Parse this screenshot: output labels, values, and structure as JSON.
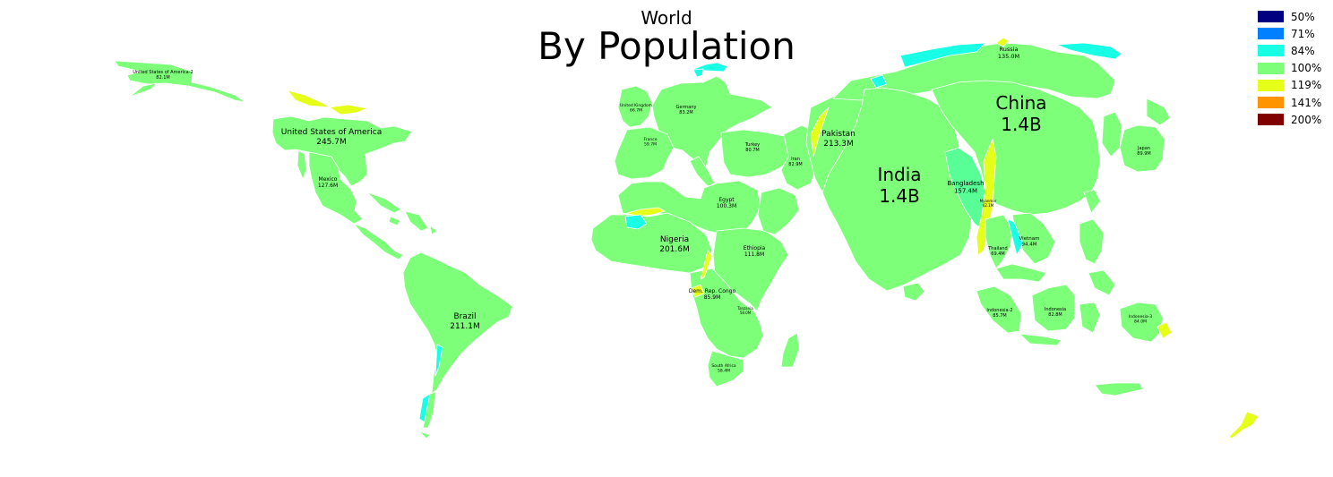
{
  "title": {
    "super": "World",
    "main": "By Population"
  },
  "legend": [
    {
      "label": "50%",
      "color": "#000080"
    },
    {
      "label": "71%",
      "color": "#0080ff"
    },
    {
      "label": "84%",
      "color": "#19ffe6"
    },
    {
      "label": "100%",
      "color": "#7dff7a"
    },
    {
      "label": "119%",
      "color": "#e6ff19"
    },
    {
      "label": "141%",
      "color": "#ff9400"
    },
    {
      "label": "200%",
      "color": "#800000"
    }
  ],
  "countries": [
    {
      "name": "United States of America-2",
      "value": "82.1M"
    },
    {
      "name": "United States of America",
      "value": "245.7M"
    },
    {
      "name": "Mexico",
      "value": "127.6M"
    },
    {
      "name": "Brazil",
      "value": "211.1M"
    },
    {
      "name": "United Kingdom",
      "value": "66.7M"
    },
    {
      "name": "Germany",
      "value": "83.2M"
    },
    {
      "name": "France",
      "value": "59.7M"
    },
    {
      "name": "Turkey",
      "value": "80.7M"
    },
    {
      "name": "Iran",
      "value": "82.9M"
    },
    {
      "name": "Egypt",
      "value": "100.3M"
    },
    {
      "name": "Nigeria",
      "value": "201.6M"
    },
    {
      "name": "Ethiopia",
      "value": "111.8M"
    },
    {
      "name": "Dem. Rep. Congo",
      "value": "85.9M"
    },
    {
      "name": "Tanzania",
      "value": "58.0M"
    },
    {
      "name": "South Africa",
      "value": "58.4M"
    },
    {
      "name": "Russia",
      "value": "135.0M"
    },
    {
      "name": "Pakistan",
      "value": "213.3M"
    },
    {
      "name": "India",
      "value": "1.4B"
    },
    {
      "name": "China",
      "value": "1.4B"
    },
    {
      "name": "Bangladesh",
      "value": "157.4M"
    },
    {
      "name": "Myanmar",
      "value": "62.1M"
    },
    {
      "name": "Japan",
      "value": "89.9M"
    },
    {
      "name": "Vietnam",
      "value": "94.4M"
    },
    {
      "name": "Thailand",
      "value": "69.4M"
    },
    {
      "name": "Indonesia-2",
      "value": "85.7M"
    },
    {
      "name": "Indonesia",
      "value": "82.8M"
    },
    {
      "name": "Indonesia-3",
      "value": "84.0M"
    }
  ]
}
